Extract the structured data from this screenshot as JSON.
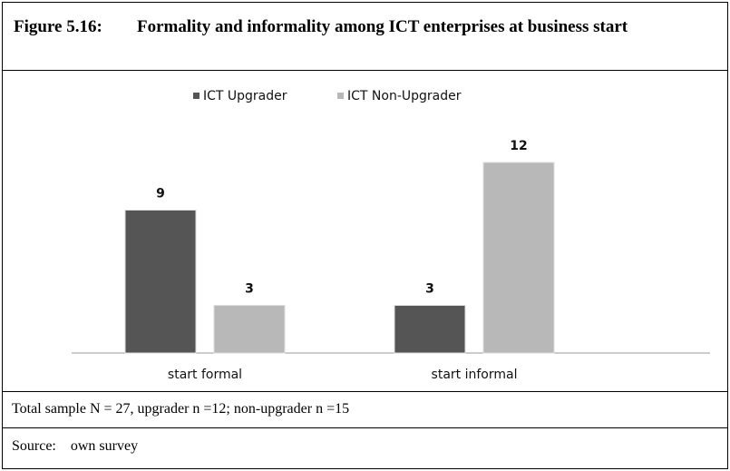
{
  "figure": {
    "label": "Figure 5.16:",
    "title": "Formality and informality among ICT enterprises at business start"
  },
  "chart_data": {
    "type": "bar",
    "categories": [
      "start formal",
      "start informal"
    ],
    "series": [
      {
        "name": "ICT Upgrader",
        "color": "#555555",
        "values": [
          9,
          3
        ]
      },
      {
        "name": "ICT Non-Upgrader",
        "color": "#b8b8b8",
        "values": [
          3,
          12
        ]
      }
    ]
  },
  "note": "Total sample N = 27, upgrader n =12; non-upgrader n =15",
  "source": {
    "label": "Source:",
    "text": "own survey"
  }
}
